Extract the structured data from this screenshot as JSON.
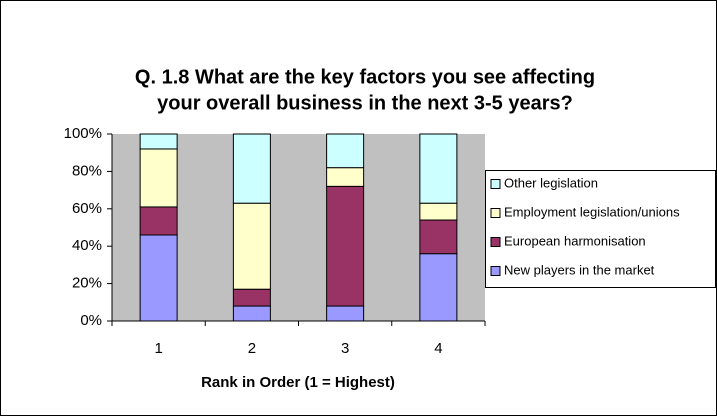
{
  "chart_data": {
    "type": "stacked_bar",
    "title": [
      "Q. 1.8  What are the key factors you see affecting",
      "your overall  business in the next 3-5 years?"
    ],
    "x_label": "Rank in Order (1 = Highest)",
    "categories": [
      "1",
      "2",
      "3",
      "4"
    ],
    "series": [
      {
        "name": "New players in the market",
        "color": "#9999ff",
        "values": [
          46,
          8,
          8,
          36
        ]
      },
      {
        "name": "European harmonisation",
        "color": "#993366",
        "values": [
          15,
          9,
          64,
          18
        ]
      },
      {
        "name": "Employment legislation/unions",
        "color": "#ffffcc",
        "values": [
          31,
          46,
          10,
          9
        ]
      },
      {
        "name": "Other legislation",
        "color": "#ccffff",
        "values": [
          8,
          37,
          18,
          37
        ]
      }
    ],
    "ylim": [
      0,
      100
    ],
    "yticks": [
      {
        "value": 0,
        "label": "0%"
      },
      {
        "value": 20,
        "label": "20%"
      },
      {
        "value": 40,
        "label": "40%"
      },
      {
        "value": 60,
        "label": "60%"
      },
      {
        "value": 80,
        "label": "80%"
      },
      {
        "value": 100,
        "label": "100%"
      }
    ],
    "grid": false,
    "legend": "right"
  }
}
